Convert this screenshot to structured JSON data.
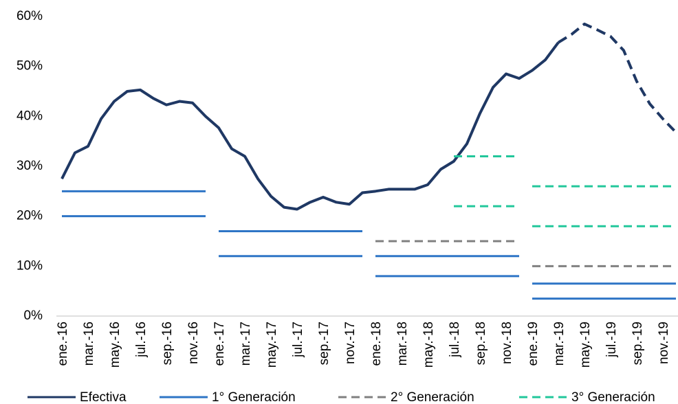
{
  "chart_data": {
    "type": "line",
    "categories": [
      "ene.-16",
      null,
      "mar.-16",
      null,
      "may.-16",
      null,
      "jul.-16",
      null,
      "sep.-16",
      null,
      "nov.-16",
      null,
      "ene.-17",
      null,
      "mar.-17",
      null,
      "may.-17",
      null,
      "jul.-17",
      null,
      "sep.-17",
      null,
      "nov.-17",
      null,
      "ene.-18",
      null,
      "mar.-18",
      null,
      "may.-18",
      null,
      "jul.-18",
      null,
      "sep.-18",
      null,
      "nov.-18",
      null,
      "ene.-19",
      null,
      "mar.-19",
      null,
      "may.-19",
      null,
      "jul.-19",
      null,
      "sep.-19",
      null,
      "nov.-19",
      null
    ],
    "ylim": [
      0,
      60
    ],
    "yticks": [
      {
        "value": 0,
        "label": "0%"
      },
      {
        "value": 10,
        "label": "10%"
      },
      {
        "value": 20,
        "label": "20%"
      },
      {
        "value": 30,
        "label": "30%"
      },
      {
        "value": 40,
        "label": "40%"
      },
      {
        "value": 50,
        "label": "50%"
      },
      {
        "value": 60,
        "label": "60%"
      }
    ],
    "series": [
      {
        "name": "Efectiva",
        "color": "#1f3864",
        "dash_from": 38,
        "values": [
          27.5,
          32.7,
          34,
          39.5,
          43,
          45,
          45.3,
          43.6,
          42.3,
          43,
          42.7,
          40,
          37.7,
          33.5,
          32,
          27.5,
          24,
          21.8,
          21.4,
          22.8,
          23.8,
          22.8,
          22.4,
          24.7,
          25,
          25.4,
          25.4,
          25.4,
          26.3,
          29.4,
          31,
          34.5,
          40.6,
          45.8,
          48.5,
          47.6,
          49.2,
          51.3,
          54.8,
          56.4,
          58.5,
          57.3,
          56,
          53.2,
          47,
          42.5,
          39.5,
          36.8
        ]
      },
      {
        "name": "1° Generación",
        "color": "#2e75c6",
        "dashed": false,
        "levels": [
          {
            "from": 0,
            "to": 11,
            "value": 25
          },
          {
            "from": 0,
            "to": 11,
            "value": 20
          },
          {
            "from": 12,
            "to": 23,
            "value": 17
          },
          {
            "from": 12,
            "to": 23,
            "value": 12
          },
          {
            "from": 24,
            "to": 35,
            "value": 12
          },
          {
            "from": 24,
            "to": 35,
            "value": 8
          },
          {
            "from": 36,
            "to": 47,
            "value": 6.5
          },
          {
            "from": 36,
            "to": 47,
            "value": 3.5
          }
        ]
      },
      {
        "name": "2° Generación",
        "color": "#808080",
        "dashed": true,
        "levels": [
          {
            "from": 24,
            "to": 35,
            "value": 15
          },
          {
            "from": 36,
            "to": 47,
            "value": 10
          }
        ]
      },
      {
        "name": "3° Generación",
        "color": "#22c79b",
        "dashed": true,
        "levels": [
          {
            "from": 30,
            "to": 35,
            "value": 32
          },
          {
            "from": 30,
            "to": 35,
            "value": 22
          },
          {
            "from": 36,
            "to": 47,
            "value": 26
          },
          {
            "from": 36,
            "to": 47,
            "value": 18
          }
        ]
      }
    ]
  }
}
